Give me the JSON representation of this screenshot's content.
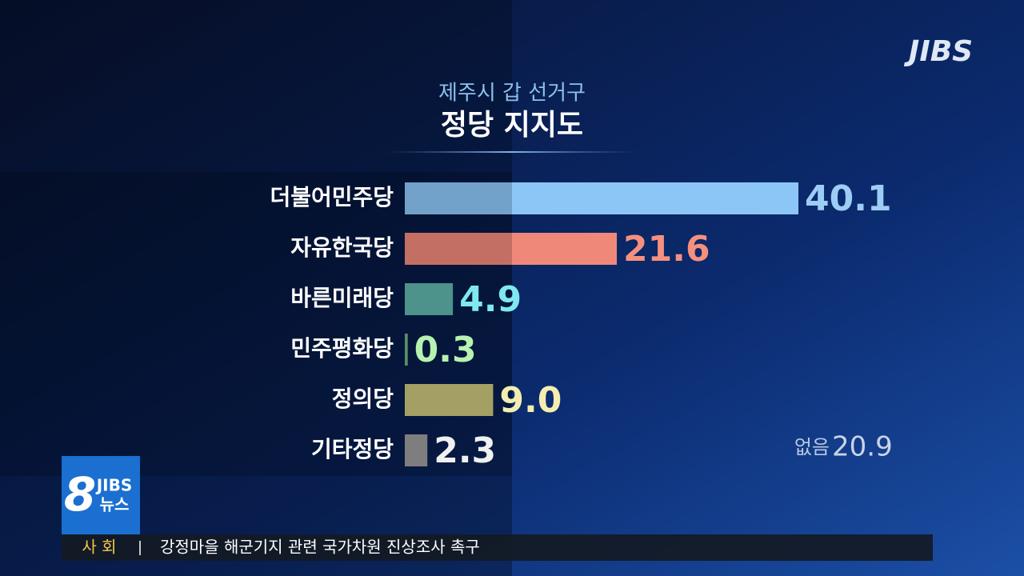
{
  "broadcast": {
    "logo": "JIBS",
    "program": {
      "number": "8",
      "brand": "JIBS",
      "label": "뉴스"
    },
    "ticker": {
      "section": "사 회",
      "headline": "강정마을 해군기지 관련 국가차원 진상조사 촉구"
    }
  },
  "chart_data": {
    "type": "bar",
    "orientation": "horizontal",
    "subtitle": "제주시 갑 선거구",
    "title": "정당 지지도",
    "categories": [
      "더불어민주당",
      "자유한국당",
      "바른미래당",
      "민주평화당",
      "정의당",
      "기타정당"
    ],
    "values": [
      40.1,
      21.6,
      4.9,
      0.3,
      9.0,
      2.3
    ],
    "value_labels": [
      "40.1",
      "21.6",
      "4.9",
      "0.3",
      "9.0",
      "2.3"
    ],
    "colors": [
      "#8cc6f7",
      "#f0887a",
      "#5fb3aa",
      "#6fae7a",
      "#c8c47a",
      "#9a9a9a"
    ],
    "label_colors": [
      "#9ccdf5",
      "#f5907f",
      "#7fe8f0",
      "#b6f2b0",
      "#f3eeb0",
      "#f0f0f0"
    ],
    "annotation": {
      "label": "없음",
      "value": 20.9
    }
  }
}
